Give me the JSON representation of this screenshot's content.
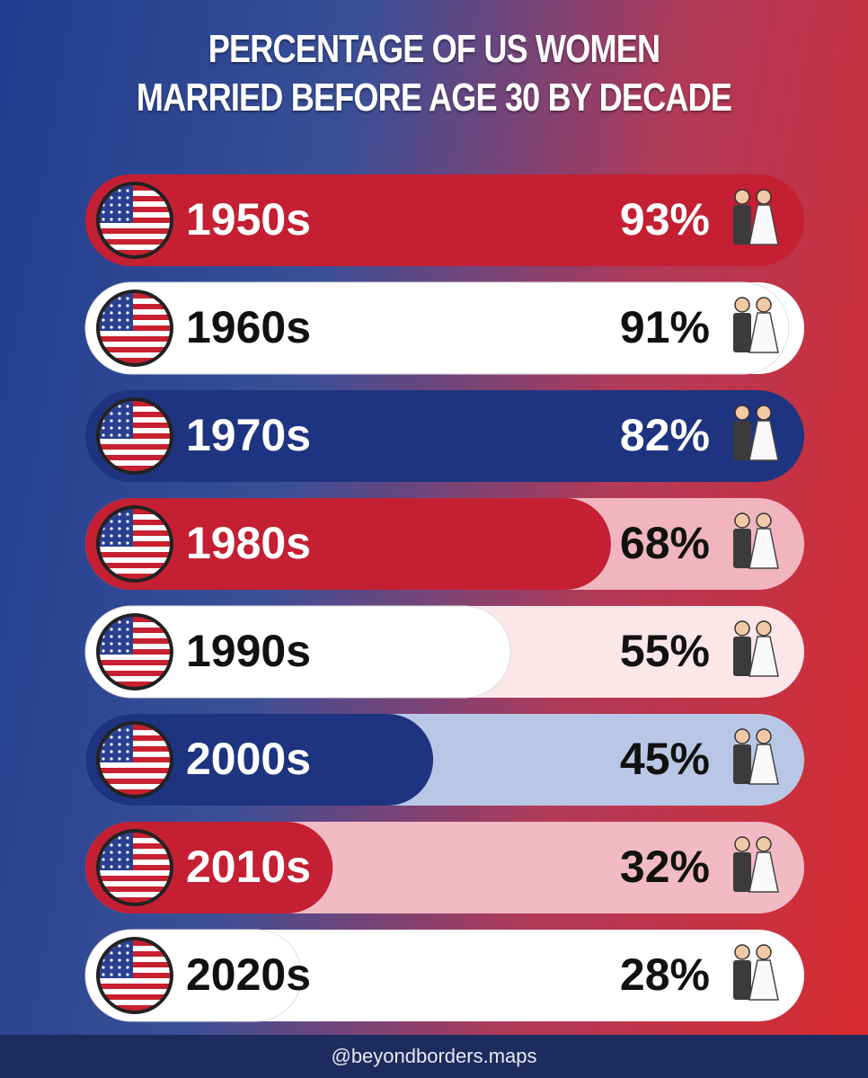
{
  "chart_data": {
    "type": "bar",
    "title": [
      "PERCENTAGE OF US WOMEN",
      "MARRIED BEFORE AGE 30 BY DECADE"
    ],
    "categories": [
      "1950s",
      "1960s",
      "1970s",
      "1980s",
      "1990s",
      "2000s",
      "2010s",
      "2020s"
    ],
    "values": [
      93,
      91,
      82,
      68,
      55,
      45,
      32,
      28
    ],
    "value_labels": [
      "93%",
      "91%",
      "82%",
      "68%",
      "55%",
      "45%",
      "32%",
      "28%"
    ],
    "colors": [
      "#c41f33",
      "#ffffff",
      "#1e3480",
      "#c41f33",
      "#ffffff",
      "#1e3480",
      "#c41f33",
      "#ffffff"
    ],
    "track_colors": [
      "#c41f33",
      "#ffffff",
      "#1e3480",
      "#f1b5bf",
      "#fbe6e9",
      "#b9c7e6",
      "#f2bac4",
      "#ffffff"
    ],
    "source": "@beyondborders.maps"
  }
}
